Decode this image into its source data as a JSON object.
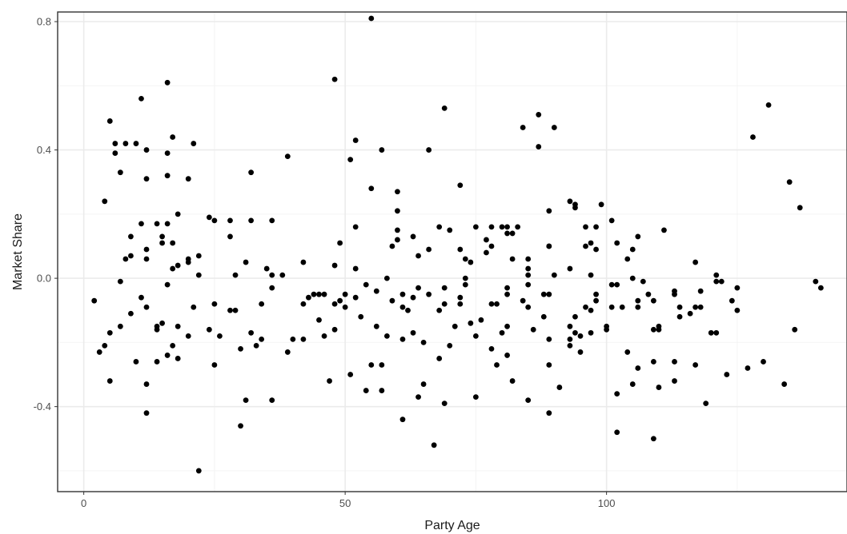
{
  "chart_data": {
    "type": "scatter",
    "title": "",
    "xlabel": "Party Age",
    "ylabel": "Market Share",
    "xlim": [
      -5,
      146
    ],
    "ylim": [
      -0.665,
      0.83
    ],
    "x_ticks": [
      0,
      50,
      100
    ],
    "x_tick_labels": [
      "0",
      "50",
      "100"
    ],
    "y_ticks": [
      -0.4,
      0.0,
      0.4,
      0.8
    ],
    "y_tick_labels": [
      "-0.4",
      "0.0",
      "0.4",
      "0.8"
    ],
    "grid": true,
    "legend": "none",
    "colors": {
      "point": "#000000",
      "panel_border": "#333333",
      "grid_major": "#ebebeb",
      "grid_minor": "#f4f4f4",
      "background": "#ffffff"
    },
    "points": [
      [
        2,
        -0.07
      ],
      [
        3,
        -0.23
      ],
      [
        4,
        0.24
      ],
      [
        4,
        -0.21
      ],
      [
        5,
        0.49
      ],
      [
        5,
        -0.17
      ],
      [
        5,
        -0.32
      ],
      [
        6,
        0.42
      ],
      [
        6,
        0.39
      ],
      [
        7,
        0.33
      ],
      [
        7,
        -0.01
      ],
      [
        7,
        -0.15
      ],
      [
        8,
        0.42
      ],
      [
        8,
        0.06
      ],
      [
        9,
        0.13
      ],
      [
        9,
        0.07
      ],
      [
        9,
        -0.11
      ],
      [
        10,
        0.42
      ],
      [
        10,
        -0.26
      ],
      [
        11,
        0.56
      ],
      [
        11,
        0.17
      ],
      [
        11,
        -0.06
      ],
      [
        12,
        0.4
      ],
      [
        12,
        0.31
      ],
      [
        12,
        0.09
      ],
      [
        12,
        0.06
      ],
      [
        12,
        -0.09
      ],
      [
        12,
        -0.33
      ],
      [
        12,
        -0.42
      ],
      [
        14,
        0.17
      ],
      [
        14,
        -0.15
      ],
      [
        14,
        -0.16
      ],
      [
        14,
        -0.26
      ],
      [
        15,
        0.13
      ],
      [
        15,
        0.11
      ],
      [
        15,
        -0.14
      ],
      [
        16,
        0.61
      ],
      [
        16,
        0.39
      ],
      [
        16,
        0.32
      ],
      [
        16,
        0.17
      ],
      [
        16,
        -0.02
      ],
      [
        16,
        -0.24
      ],
      [
        17,
        0.44
      ],
      [
        17,
        0.11
      ],
      [
        17,
        0.03
      ],
      [
        17,
        -0.21
      ],
      [
        18,
        0.2
      ],
      [
        18,
        0.04
      ],
      [
        18,
        -0.15
      ],
      [
        18,
        -0.25
      ],
      [
        20,
        0.31
      ],
      [
        20,
        0.06
      ],
      [
        20,
        0.05
      ],
      [
        20,
        -0.18
      ],
      [
        21,
        0.42
      ],
      [
        21,
        -0.09
      ],
      [
        22,
        0.07
      ],
      [
        22,
        0.01
      ],
      [
        22,
        -0.6
      ],
      [
        24,
        0.19
      ],
      [
        24,
        -0.16
      ],
      [
        25,
        0.18
      ],
      [
        25,
        -0.08
      ],
      [
        25,
        -0.27
      ],
      [
        26,
        -0.18
      ],
      [
        28,
        0.18
      ],
      [
        28,
        0.13
      ],
      [
        28,
        -0.1
      ],
      [
        29,
        0.01
      ],
      [
        29,
        -0.1
      ],
      [
        30,
        -0.22
      ],
      [
        30,
        -0.46
      ],
      [
        31,
        0.05
      ],
      [
        31,
        -0.38
      ],
      [
        32,
        0.33
      ],
      [
        32,
        0.18
      ],
      [
        32,
        -0.17
      ],
      [
        33,
        -0.21
      ],
      [
        34,
        -0.08
      ],
      [
        34,
        -0.19
      ],
      [
        35,
        0.03
      ],
      [
        36,
        0.18
      ],
      [
        36,
        0.01
      ],
      [
        36,
        -0.03
      ],
      [
        36,
        -0.38
      ],
      [
        38,
        0.01
      ],
      [
        39,
        0.38
      ],
      [
        39,
        -0.23
      ],
      [
        40,
        -0.19
      ],
      [
        42,
        0.05
      ],
      [
        42,
        -0.08
      ],
      [
        42,
        -0.19
      ],
      [
        43,
        -0.06
      ],
      [
        44,
        -0.05
      ],
      [
        45,
        -0.05
      ],
      [
        45,
        -0.13
      ],
      [
        46,
        -0.05
      ],
      [
        46,
        -0.18
      ],
      [
        47,
        -0.32
      ],
      [
        48,
        0.62
      ],
      [
        48,
        0.04
      ],
      [
        48,
        -0.08
      ],
      [
        48,
        -0.16
      ],
      [
        49,
        0.11
      ],
      [
        49,
        -0.07
      ],
      [
        50,
        -0.05
      ],
      [
        50,
        -0.09
      ],
      [
        51,
        0.37
      ],
      [
        51,
        -0.3
      ],
      [
        52,
        0.43
      ],
      [
        52,
        0.16
      ],
      [
        52,
        0.03
      ],
      [
        52,
        -0.06
      ],
      [
        53,
        -0.12
      ],
      [
        54,
        -0.02
      ],
      [
        54,
        -0.35
      ],
      [
        55,
        0.81
      ],
      [
        55,
        0.28
      ],
      [
        55,
        -0.27
      ],
      [
        56,
        -0.04
      ],
      [
        56,
        -0.15
      ],
      [
        57,
        0.4
      ],
      [
        57,
        -0.27
      ],
      [
        57,
        -0.35
      ],
      [
        58,
        0.0
      ],
      [
        58,
        -0.18
      ],
      [
        59,
        0.1
      ],
      [
        59,
        -0.07
      ],
      [
        60,
        0.27
      ],
      [
        60,
        0.21
      ],
      [
        60,
        0.15
      ],
      [
        60,
        0.12
      ],
      [
        61,
        -0.05
      ],
      [
        61,
        -0.09
      ],
      [
        61,
        -0.19
      ],
      [
        61,
        -0.44
      ],
      [
        62,
        -0.1
      ],
      [
        63,
        0.13
      ],
      [
        63,
        -0.06
      ],
      [
        63,
        -0.17
      ],
      [
        64,
        0.07
      ],
      [
        64,
        -0.03
      ],
      [
        64,
        -0.37
      ],
      [
        65,
        -0.2
      ],
      [
        65,
        -0.33
      ],
      [
        66,
        0.4
      ],
      [
        66,
        0.09
      ],
      [
        66,
        -0.05
      ],
      [
        67,
        -0.52
      ],
      [
        68,
        0.16
      ],
      [
        68,
        -0.1
      ],
      [
        68,
        -0.25
      ],
      [
        69,
        0.53
      ],
      [
        69,
        -0.03
      ],
      [
        69,
        -0.08
      ],
      [
        69,
        -0.39
      ],
      [
        70,
        0.15
      ],
      [
        70,
        -0.21
      ],
      [
        71,
        -0.15
      ],
      [
        72,
        0.29
      ],
      [
        72,
        0.09
      ],
      [
        72,
        -0.06
      ],
      [
        72,
        -0.08
      ],
      [
        73,
        0.06
      ],
      [
        73,
        0.0
      ],
      [
        73,
        -0.02
      ],
      [
        74,
        0.05
      ],
      [
        74,
        -0.14
      ],
      [
        75,
        0.16
      ],
      [
        75,
        -0.18
      ],
      [
        75,
        -0.37
      ],
      [
        76,
        -0.13
      ],
      [
        77,
        0.12
      ],
      [
        77,
        0.08
      ],
      [
        78,
        0.16
      ],
      [
        78,
        0.1
      ],
      [
        78,
        -0.08
      ],
      [
        78,
        -0.22
      ],
      [
        79,
        -0.08
      ],
      [
        79,
        -0.27
      ],
      [
        80,
        0.16
      ],
      [
        80,
        -0.17
      ],
      [
        81,
        0.16
      ],
      [
        81,
        0.14
      ],
      [
        81,
        -0.03
      ],
      [
        81,
        -0.05
      ],
      [
        81,
        -0.15
      ],
      [
        81,
        -0.24
      ],
      [
        82,
        0.14
      ],
      [
        82,
        0.06
      ],
      [
        82,
        -0.32
      ],
      [
        83,
        0.16
      ],
      [
        84,
        0.47
      ],
      [
        84,
        -0.07
      ],
      [
        85,
        0.06
      ],
      [
        85,
        0.03
      ],
      [
        85,
        0.01
      ],
      [
        85,
        -0.02
      ],
      [
        85,
        -0.09
      ],
      [
        85,
        -0.38
      ],
      [
        86,
        -0.16
      ],
      [
        87,
        0.51
      ],
      [
        87,
        0.41
      ],
      [
        88,
        -0.05
      ],
      [
        88,
        -0.12
      ],
      [
        89,
        0.21
      ],
      [
        89,
        0.1
      ],
      [
        89,
        0.1
      ],
      [
        89,
        -0.05
      ],
      [
        89,
        -0.19
      ],
      [
        89,
        -0.27
      ],
      [
        89,
        -0.42
      ],
      [
        90,
        0.47
      ],
      [
        90,
        0.01
      ],
      [
        91,
        -0.34
      ],
      [
        93,
        0.24
      ],
      [
        93,
        0.03
      ],
      [
        93,
        -0.15
      ],
      [
        93,
        -0.19
      ],
      [
        93,
        -0.21
      ],
      [
        94,
        0.23
      ],
      [
        94,
        0.22
      ],
      [
        94,
        -0.12
      ],
      [
        94,
        -0.17
      ],
      [
        95,
        -0.18
      ],
      [
        95,
        -0.23
      ],
      [
        96,
        0.16
      ],
      [
        96,
        0.1
      ],
      [
        96,
        -0.09
      ],
      [
        97,
        0.11
      ],
      [
        97,
        0.01
      ],
      [
        97,
        -0.1
      ],
      [
        97,
        -0.17
      ],
      [
        98,
        0.16
      ],
      [
        98,
        0.09
      ],
      [
        98,
        -0.05
      ],
      [
        98,
        -0.07
      ],
      [
        99,
        0.23
      ],
      [
        100,
        -0.15
      ],
      [
        100,
        -0.16
      ],
      [
        101,
        0.18
      ],
      [
        101,
        -0.02
      ],
      [
        101,
        -0.09
      ],
      [
        102,
        0.11
      ],
      [
        102,
        -0.02
      ],
      [
        102,
        -0.36
      ],
      [
        102,
        -0.48
      ],
      [
        103,
        -0.09
      ],
      [
        104,
        0.06
      ],
      [
        104,
        -0.23
      ],
      [
        105,
        0.09
      ],
      [
        105,
        0.0
      ],
      [
        105,
        -0.33
      ],
      [
        106,
        0.13
      ],
      [
        106,
        -0.07
      ],
      [
        106,
        -0.09
      ],
      [
        106,
        -0.28
      ],
      [
        107,
        -0.01
      ],
      [
        108,
        -0.05
      ],
      [
        109,
        -0.07
      ],
      [
        109,
        -0.16
      ],
      [
        109,
        -0.26
      ],
      [
        109,
        -0.5
      ],
      [
        110,
        -0.15
      ],
      [
        110,
        -0.16
      ],
      [
        110,
        -0.34
      ],
      [
        111,
        0.15
      ],
      [
        113,
        -0.04
      ],
      [
        113,
        -0.05
      ],
      [
        113,
        -0.26
      ],
      [
        113,
        -0.32
      ],
      [
        114,
        -0.09
      ],
      [
        114,
        -0.12
      ],
      [
        116,
        -0.11
      ],
      [
        117,
        0.05
      ],
      [
        117,
        -0.09
      ],
      [
        117,
        -0.27
      ],
      [
        118,
        -0.04
      ],
      [
        118,
        -0.09
      ],
      [
        119,
        -0.39
      ],
      [
        120,
        -0.17
      ],
      [
        121,
        0.01
      ],
      [
        121,
        -0.01
      ],
      [
        121,
        -0.17
      ],
      [
        122,
        -0.01
      ],
      [
        123,
        -0.3
      ],
      [
        124,
        -0.07
      ],
      [
        125,
        -0.03
      ],
      [
        125,
        -0.1
      ],
      [
        127,
        -0.28
      ],
      [
        128,
        0.44
      ],
      [
        130,
        -0.26
      ],
      [
        131,
        0.54
      ],
      [
        134,
        -0.33
      ],
      [
        135,
        0.3
      ],
      [
        136,
        -0.16
      ],
      [
        137,
        0.22
      ],
      [
        140,
        -0.01
      ],
      [
        141,
        -0.03
      ]
    ]
  }
}
